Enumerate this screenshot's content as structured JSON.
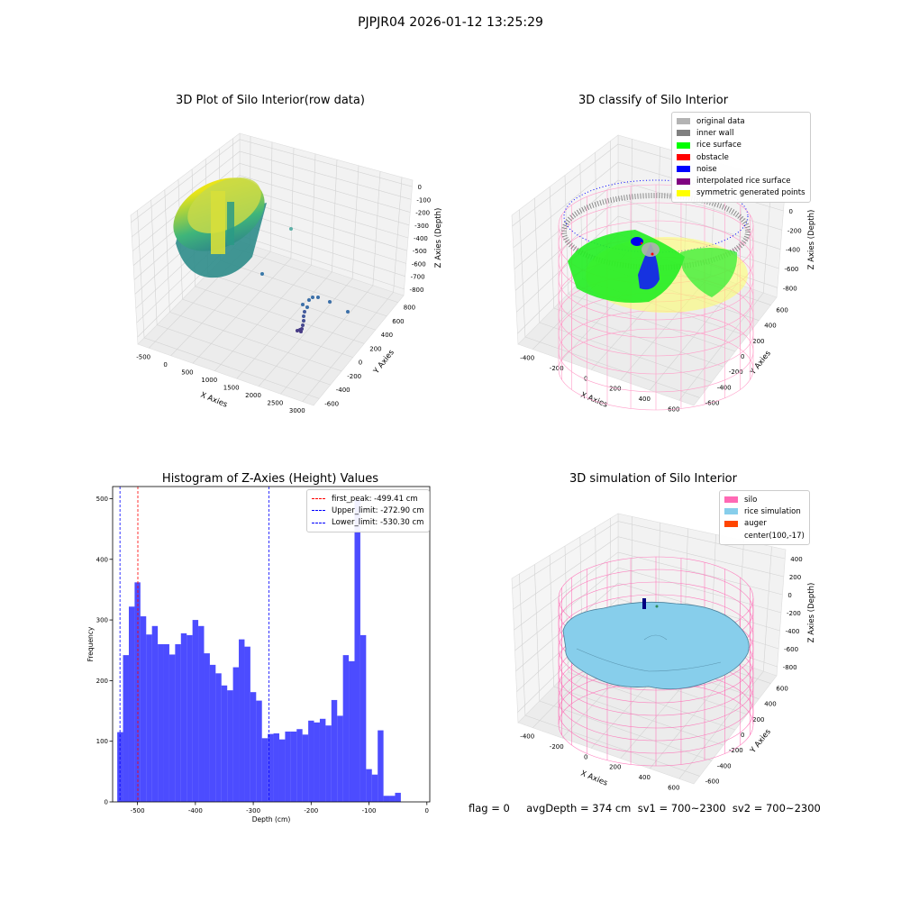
{
  "figure": {
    "suptitle": "PJPJR04 2026-01-12 13:25:29",
    "footer": "flag = 0     avgDepth = 374 cm  sv1 = 700~2300  sv2 = 700~2300"
  },
  "panels": {
    "raw": {
      "title": "3D Plot of Silo Interior(row data)",
      "xlabel": "X Axies",
      "ylabel": "Y Axies",
      "zlabel": "Z Axies (Depth)",
      "xticks": [
        "-500",
        "0",
        "500",
        "1000",
        "1500",
        "2000",
        "2500",
        "3000"
      ],
      "yticks": [
        "-600",
        "-400",
        "-200",
        "0",
        "200",
        "400",
        "600",
        "800"
      ],
      "zticks": [
        "0",
        "-100",
        "-200",
        "-300",
        "-400",
        "-500",
        "-600",
        "-700",
        "-800"
      ]
    },
    "classify": {
      "title": "3D classify of Silo Interior",
      "xlabel": "X Axies",
      "ylabel": "Y Axies",
      "zlabel": "Z Axies (Depth)",
      "xticks": [
        "-400",
        "-200",
        "0",
        "200",
        "400",
        "600"
      ],
      "yticks": [
        "-600",
        "-400",
        "-200",
        "0",
        "200",
        "400",
        "600"
      ],
      "zticks": [
        "200",
        "0",
        "-200",
        "-400",
        "-600",
        "-800"
      ],
      "legend": [
        {
          "label": "original data",
          "color": "#b3b3b3"
        },
        {
          "label": "inner wall",
          "color": "#808080"
        },
        {
          "label": "rice surface",
          "color": "#00ff00"
        },
        {
          "label": "obstacle",
          "color": "#ff0000"
        },
        {
          "label": "noise",
          "color": "#0000ff"
        },
        {
          "label": "interpolated rice surface",
          "color": "#800080"
        },
        {
          "label": "symmetric generated points",
          "color": "#ffff00"
        }
      ]
    },
    "simulation": {
      "title": "3D simulation of Silo Interior",
      "xlabel": "X Axies",
      "ylabel": "Y Axies",
      "zlabel": "Z Axies (Depth)",
      "xticks": [
        "-400",
        "-200",
        "0",
        "200",
        "400",
        "600"
      ],
      "yticks": [
        "-600",
        "-400",
        "-200",
        "0",
        "200",
        "400",
        "600"
      ],
      "zticks": [
        "400",
        "200",
        "0",
        "-200",
        "-400",
        "-600",
        "-800"
      ],
      "legend": [
        {
          "label": "silo",
          "color": "#ff69b4"
        },
        {
          "label": "rice simulation",
          "color": "#87ceeb"
        },
        {
          "label": "auger",
          "color": "#ff4500"
        },
        {
          "label": "center(100,-17)",
          "color": ""
        }
      ]
    }
  },
  "chart_data": {
    "type": "bar",
    "title": "Histogram of Z-Axies (Height) Values",
    "xlabel": "Depth (cm)",
    "ylabel": "Frequency",
    "xlim": [
      -543,
      5
    ],
    "ylim": [
      0,
      520
    ],
    "xticks": [
      -500,
      -400,
      -300,
      -200,
      -100,
      0
    ],
    "yticks": [
      0,
      100,
      200,
      300,
      400,
      500
    ],
    "bin_start": -535,
    "bin_width": 10,
    "values": [
      115,
      242,
      322,
      362,
      306,
      276,
      290,
      260,
      260,
      243,
      260,
      278,
      275,
      300,
      290,
      245,
      226,
      212,
      192,
      184,
      222,
      268,
      256,
      181,
      167,
      105,
      112,
      113,
      103,
      116,
      116,
      120,
      111,
      134,
      131,
      137,
      126,
      168,
      142,
      242,
      232,
      498,
      275,
      54,
      45,
      118,
      10,
      10,
      15
    ],
    "color": "#0000ff",
    "vlines": [
      {
        "label": "first_peak: -499.41 cm",
        "x": -499.41,
        "color": "#ff0000"
      },
      {
        "label": "Upper_limit: -272.90 cm",
        "x": -272.9,
        "color": "#0000ff"
      },
      {
        "label": "Lower_limit: -530.30 cm",
        "x": -530.3,
        "color": "#0000ff"
      }
    ]
  }
}
